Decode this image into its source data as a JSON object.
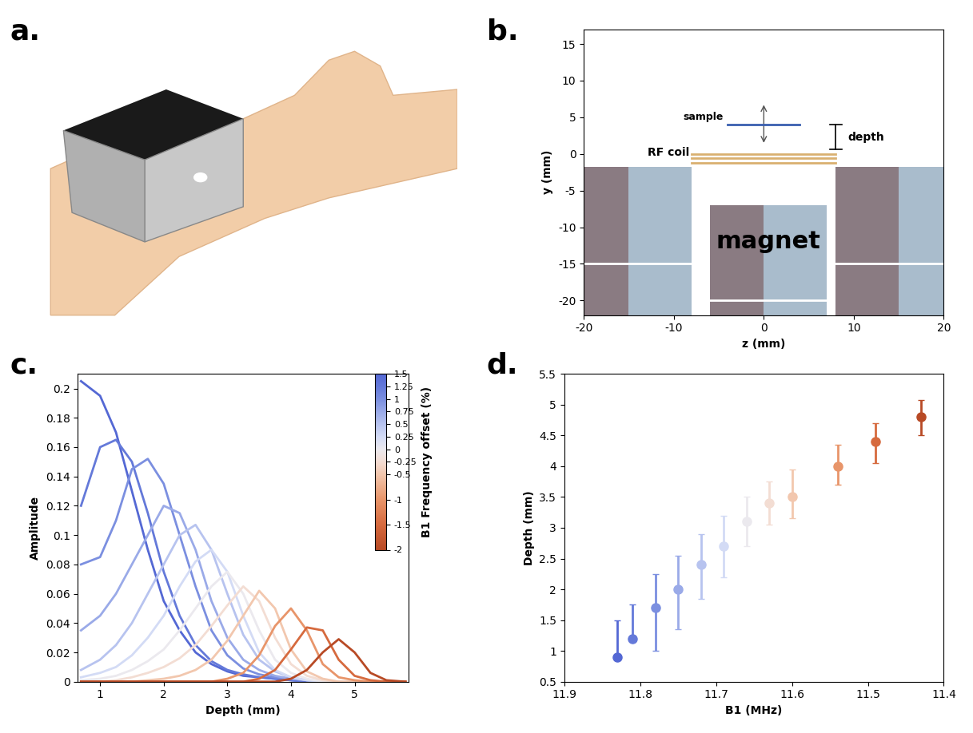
{
  "panel_labels": [
    "a.",
    "b.",
    "c.",
    "d."
  ],
  "chart_data": [
    {
      "type": "diagram",
      "xlabel": "z (mm)",
      "ylabel": "y (mm)",
      "xlim": [
        -20,
        20
      ],
      "ylim": [
        -22,
        17
      ],
      "xticks": [
        -20,
        -10,
        0,
        10,
        20
      ],
      "yticks": [
        -20,
        -15,
        -10,
        -5,
        0,
        5,
        10,
        15
      ],
      "annotations": {
        "sample": "sample",
        "depth": "depth",
        "coil": "RF coil",
        "magnet": "magnet"
      }
    },
    {
      "type": "line",
      "xlabel": "Depth (mm)",
      "ylabel": "Amplitude",
      "x": [
        0.7,
        1.0,
        1.25,
        1.5,
        1.75,
        2.0,
        2.25,
        2.5,
        2.75,
        3.0,
        3.25,
        3.5,
        3.75,
        4.0,
        4.25,
        4.5,
        4.75,
        5.0,
        5.25,
        5.5,
        5.8
      ],
      "xlim": [
        0.65,
        5.85
      ],
      "xticks": [
        1,
        2,
        3,
        4,
        5
      ],
      "ylim": [
        0,
        0.21
      ],
      "yticks": [
        0,
        0.02,
        0.04,
        0.06,
        0.08,
        0.1,
        0.12,
        0.14,
        0.16,
        0.18,
        0.2
      ],
      "series": [
        {
          "offset": 1.5,
          "color": "#5468d4",
          "values": [
            0.205,
            0.195,
            0.17,
            0.13,
            0.09,
            0.055,
            0.035,
            0.02,
            0.012,
            0.007,
            0.004,
            0.003,
            0.002,
            0.001,
            0,
            0,
            0,
            0,
            0,
            0,
            0
          ]
        },
        {
          "offset": 1.25,
          "color": "#6479d9",
          "values": [
            0.12,
            0.16,
            0.165,
            0.15,
            0.115,
            0.075,
            0.045,
            0.025,
            0.014,
            0.008,
            0.005,
            0.003,
            0.002,
            0.001,
            0,
            0,
            0,
            0,
            0,
            0,
            0
          ]
        },
        {
          "offset": 1,
          "color": "#7b8fe0",
          "values": [
            0.08,
            0.085,
            0.11,
            0.145,
            0.152,
            0.135,
            0.1,
            0.065,
            0.035,
            0.018,
            0.009,
            0.005,
            0.003,
            0.002,
            0.001,
            0,
            0,
            0,
            0,
            0,
            0
          ]
        },
        {
          "offset": 0.75,
          "color": "#9aaae8",
          "values": [
            0.035,
            0.045,
            0.06,
            0.08,
            0.1,
            0.12,
            0.115,
            0.09,
            0.055,
            0.03,
            0.015,
            0.008,
            0.004,
            0.002,
            0.001,
            0,
            0,
            0,
            0,
            0,
            0
          ]
        },
        {
          "offset": 0.5,
          "color": "#b7c3ef",
          "values": [
            0.008,
            0.015,
            0.025,
            0.04,
            0.06,
            0.08,
            0.1,
            0.107,
            0.09,
            0.06,
            0.032,
            0.015,
            0.007,
            0.003,
            0.001,
            0,
            0,
            0,
            0,
            0,
            0
          ]
        },
        {
          "offset": 0.25,
          "color": "#d3dbf5",
          "values": [
            0.003,
            0.006,
            0.01,
            0.018,
            0.03,
            0.045,
            0.065,
            0.082,
            0.09,
            0.075,
            0.045,
            0.02,
            0.008,
            0.003,
            0.001,
            0,
            0,
            0,
            0,
            0,
            0
          ]
        },
        {
          "offset": 0,
          "color": "#ebe9ee",
          "values": [
            0.001,
            0.002,
            0.004,
            0.008,
            0.014,
            0.022,
            0.035,
            0.05,
            0.065,
            0.075,
            0.06,
            0.035,
            0.015,
            0.006,
            0.002,
            0,
            0,
            0,
            0,
            0,
            0
          ]
        },
        {
          "offset": -0.25,
          "color": "#f3ddd3",
          "values": [
            0,
            0,
            0.001,
            0.003,
            0.006,
            0.01,
            0.016,
            0.025,
            0.038,
            0.052,
            0.065,
            0.055,
            0.03,
            0.012,
            0.004,
            0.001,
            0,
            0,
            0,
            0,
            0
          ]
        },
        {
          "offset": -0.5,
          "color": "#f2c7ae",
          "values": [
            0,
            0,
            0,
            0,
            0.001,
            0.002,
            0.004,
            0.008,
            0.015,
            0.028,
            0.045,
            0.062,
            0.05,
            0.022,
            0.007,
            0.002,
            0,
            0,
            0,
            0,
            0
          ]
        },
        {
          "offset": -1,
          "color": "#e8956a",
          "values": [
            0,
            0,
            0,
            0,
            0,
            0,
            0,
            0,
            0,
            0.002,
            0.006,
            0.018,
            0.038,
            0.05,
            0.035,
            0.012,
            0.003,
            0.001,
            0,
            0,
            0
          ]
        },
        {
          "offset": -1.5,
          "color": "#d66a3e",
          "values": [
            0,
            0,
            0,
            0,
            0,
            0,
            0,
            0,
            0,
            0,
            0,
            0.002,
            0.008,
            0.022,
            0.037,
            0.035,
            0.015,
            0.004,
            0.001,
            0,
            0
          ]
        },
        {
          "offset": -2,
          "color": "#b84a25",
          "values": [
            0,
            0,
            0,
            0,
            0,
            0,
            0,
            0,
            0,
            0,
            0,
            0,
            0,
            0.002,
            0.008,
            0.02,
            0.029,
            0.02,
            0.006,
            0.001,
            0
          ]
        }
      ],
      "colorbar": {
        "label": "B1 Frequency offset (%)",
        "range": [
          -2,
          1.5
        ],
        "ticks": [
          1.5,
          1.25,
          1,
          0.75,
          0.5,
          0.25,
          0,
          -0.25,
          -0.5,
          -1,
          -1.5,
          -2
        ]
      }
    },
    {
      "type": "errorbar",
      "xlabel": "B1 (MHz)",
      "ylabel": "Depth (mm)",
      "marker": "o",
      "x": [
        11.83,
        11.81,
        11.78,
        11.75,
        11.72,
        11.69,
        11.66,
        11.63,
        11.6,
        11.54,
        11.49,
        11.43
      ],
      "values": [
        0.9,
        1.2,
        1.7,
        2.0,
        2.4,
        2.7,
        3.1,
        3.4,
        3.5,
        4.0,
        4.4,
        4.8
      ],
      "error_minus": [
        0,
        0,
        0.7,
        0.65,
        0.55,
        0.5,
        0.4,
        0.35,
        0.35,
        0.3,
        0.35,
        0.3
      ],
      "error_plus": [
        0.6,
        0.55,
        0.55,
        0.55,
        0.5,
        0.5,
        0.4,
        0.35,
        0.45,
        0.35,
        0.3,
        0.28
      ],
      "colors": [
        "#5468d4",
        "#6479d9",
        "#7b8fe0",
        "#9aaae8",
        "#b7c3ef",
        "#d3dbf5",
        "#ebe9ee",
        "#f3ddd3",
        "#f2c7ae",
        "#e8956a",
        "#d66a3e",
        "#b84a25"
      ],
      "xlim": [
        11.9,
        11.4
      ],
      "xticks": [
        11.9,
        11.8,
        11.7,
        11.6,
        11.5,
        11.4
      ],
      "ylim": [
        0.5,
        5.5
      ],
      "yticks": [
        0.5,
        1,
        1.5,
        2,
        2.5,
        3,
        3.5,
        4,
        4.5,
        5,
        5.5
      ]
    }
  ]
}
